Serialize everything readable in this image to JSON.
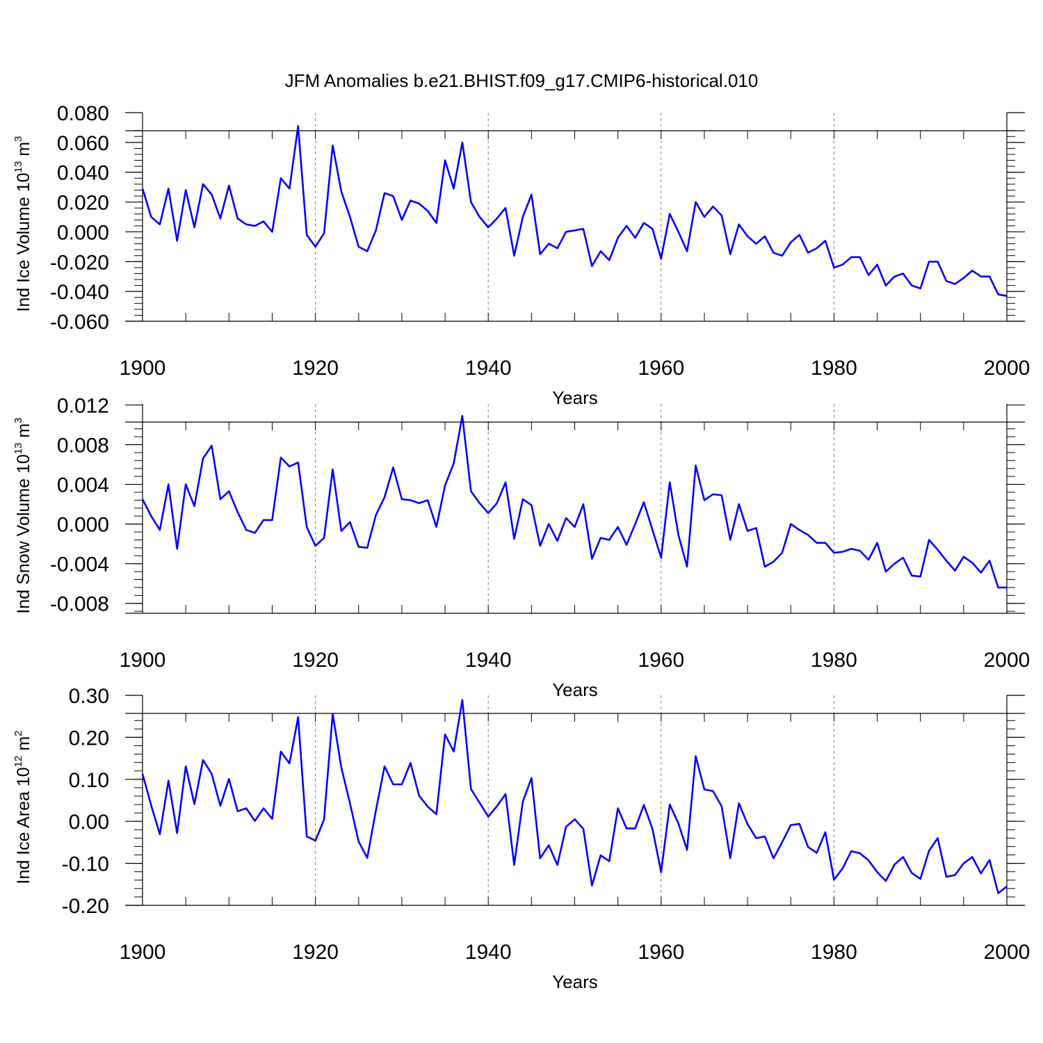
{
  "title": "JFM Anomalies b.e21.BHIST.f09_g17.CMIP6-historical.010",
  "colors": {
    "series": "#0000ff",
    "axis": "#000000",
    "grid": "#808080"
  },
  "chart_data": [
    {
      "type": "line",
      "ylabel": {
        "text": "Ind Ice Volume 10",
        "exponent": "13",
        "unit": "m",
        "unit_exponent": "3"
      },
      "xlabel": "Years",
      "xlim": [
        1900,
        2000
      ],
      "ylim": [
        -0.06,
        0.08
      ],
      "xticks": [
        1900,
        1920,
        1940,
        1960,
        1980,
        2000
      ],
      "xtick_labels": [
        "1900",
        "1920",
        "1940",
        "1960",
        "1980",
        "2000"
      ],
      "yticks": [
        -0.06,
        -0.04,
        -0.02,
        0.0,
        0.02,
        0.04,
        0.06,
        0.08
      ],
      "ytick_labels": [
        "-0.060",
        "-0.040",
        "-0.020",
        "0.000",
        "0.020",
        "0.040",
        "0.060",
        "0.080"
      ],
      "series": [
        {
          "name": "Ind Ice Volume",
          "x_start": 1900,
          "values": [
            0.029,
            0.01,
            0.005,
            0.029,
            -0.006,
            0.028,
            0.003,
            0.032,
            0.025,
            0.009,
            0.031,
            0.009,
            0.005,
            0.004,
            0.007,
            0.0,
            0.036,
            0.029,
            0.071,
            -0.002,
            -0.01,
            -0.001,
            0.058,
            0.027,
            0.01,
            -0.01,
            -0.013,
            0.001,
            0.026,
            0.024,
            0.008,
            0.021,
            0.019,
            0.014,
            0.006,
            0.048,
            0.029,
            0.06,
            0.02,
            0.01,
            0.003,
            0.009,
            0.016,
            -0.016,
            0.01,
            0.025,
            -0.015,
            -0.008,
            -0.011,
            0.0,
            0.001,
            0.002,
            -0.023,
            -0.013,
            -0.019,
            -0.004,
            0.004,
            -0.004,
            0.006,
            0.002,
            -0.018,
            0.012,
            0.0,
            -0.013,
            0.02,
            0.01,
            0.017,
            0.011,
            -0.015,
            0.005,
            -0.003,
            -0.008,
            -0.003,
            -0.014,
            -0.016,
            -0.007,
            -0.002,
            -0.014,
            -0.011,
            -0.006,
            -0.024,
            -0.022,
            -0.017,
            -0.017,
            -0.029,
            -0.022,
            -0.036,
            -0.03,
            -0.028,
            -0.036,
            -0.038,
            -0.02,
            -0.02,
            -0.033,
            -0.035,
            -0.031,
            -0.026,
            -0.03,
            -0.03,
            -0.042,
            -0.043
          ]
        }
      ]
    },
    {
      "type": "line",
      "ylabel": {
        "text": "Ind Snow Volume 10",
        "exponent": "13",
        "unit": "m",
        "unit_exponent": "3"
      },
      "xlabel": "Years",
      "xlim": [
        1900,
        2000
      ],
      "ylim": [
        -0.009,
        0.0121
      ],
      "xticks": [
        1900,
        1920,
        1940,
        1960,
        1980,
        2000
      ],
      "xtick_labels": [
        "1900",
        "1920",
        "1940",
        "1960",
        "1980",
        "2000"
      ],
      "yticks": [
        -0.008,
        -0.004,
        0.0,
        0.004,
        0.008,
        0.012
      ],
      "ytick_labels": [
        "-0.008",
        "-0.004",
        "0.000",
        "0.004",
        "0.008",
        "0.012"
      ],
      "series": [
        {
          "name": "Ind Snow Volume",
          "x_start": 1900,
          "values": [
            0.0025,
            0.0008,
            -0.0006,
            0.004,
            -0.0025,
            0.004,
            0.0018,
            0.0066,
            0.0079,
            0.0025,
            0.0033,
            0.0012,
            -0.0006,
            -0.0009,
            0.0004,
            0.0004,
            0.0067,
            0.0058,
            0.0062,
            -0.0003,
            -0.0022,
            -0.0014,
            0.0055,
            -0.0007,
            0.0002,
            -0.0023,
            -0.0024,
            0.0009,
            0.0027,
            0.0057,
            0.0025,
            0.0024,
            0.0021,
            0.0024,
            -0.0003,
            0.0039,
            0.0061,
            0.0109,
            0.0033,
            0.0021,
            0.0011,
            0.0021,
            0.0042,
            -0.0015,
            0.0025,
            0.0019,
            -0.0022,
            0.0,
            -0.0017,
            0.0006,
            -0.0003,
            0.002,
            -0.0035,
            -0.0014,
            -0.0016,
            -0.0003,
            -0.0021,
            0.0,
            0.0022,
            -0.0006,
            -0.0034,
            0.0042,
            -0.0011,
            -0.0043,
            0.0059,
            0.0024,
            0.003,
            0.0029,
            -0.0016,
            0.002,
            -0.0007,
            -0.0004,
            -0.0043,
            -0.0038,
            -0.0029,
            0.0,
            -0.0006,
            -0.0011,
            -0.0019,
            -0.0019,
            -0.0029,
            -0.0028,
            -0.0025,
            -0.0027,
            -0.0036,
            -0.0019,
            -0.0048,
            -0.004,
            -0.0034,
            -0.0052,
            -0.0053,
            -0.0016,
            -0.0026,
            -0.0037,
            -0.0047,
            -0.0033,
            -0.0039,
            -0.0049,
            -0.0037,
            -0.0064,
            -0.0064
          ]
        }
      ]
    },
    {
      "type": "line",
      "ylabel": {
        "text": "Ind Ice Area 10",
        "exponent": "12",
        "unit": "m",
        "unit_exponent": "2"
      },
      "xlabel": "Years",
      "xlim": [
        1900,
        2000
      ],
      "ylim": [
        -0.2,
        0.3
      ],
      "xticks": [
        1900,
        1920,
        1940,
        1960,
        1980,
        2000
      ],
      "xtick_labels": [
        "1900",
        "1920",
        "1940",
        "1960",
        "1980",
        "2000"
      ],
      "yticks": [
        -0.2,
        -0.1,
        0.0,
        0.1,
        0.2,
        0.3
      ],
      "ytick_labels": [
        "-0.20",
        "-0.10",
        "0.00",
        "0.10",
        "0.20",
        "0.30"
      ],
      "series": [
        {
          "name": "Ind Ice Area",
          "x_start": 1900,
          "values": [
            0.113,
            0.038,
            -0.031,
            0.097,
            -0.028,
            0.131,
            0.041,
            0.146,
            0.113,
            0.037,
            0.101,
            0.024,
            0.031,
            0.001,
            0.031,
            0.006,
            0.166,
            0.138,
            0.248,
            -0.036,
            -0.046,
            0.004,
            0.256,
            0.128,
            0.043,
            -0.048,
            -0.087,
            0.026,
            0.131,
            0.088,
            0.088,
            0.139,
            0.061,
            0.035,
            0.017,
            0.207,
            0.166,
            0.289,
            0.077,
            0.044,
            0.011,
            0.036,
            0.065,
            -0.104,
            0.047,
            0.103,
            -0.088,
            -0.057,
            -0.104,
            -0.013,
            0.005,
            -0.018,
            -0.153,
            -0.081,
            -0.095,
            0.031,
            -0.017,
            -0.017,
            0.039,
            -0.018,
            -0.121,
            0.04,
            -0.005,
            -0.068,
            0.155,
            0.076,
            0.072,
            0.036,
            -0.088,
            0.043,
            -0.007,
            -0.04,
            -0.036,
            -0.088,
            -0.05,
            -0.009,
            -0.006,
            -0.061,
            -0.075,
            -0.026,
            -0.139,
            -0.112,
            -0.071,
            -0.076,
            -0.093,
            -0.121,
            -0.142,
            -0.103,
            -0.085,
            -0.123,
            -0.137,
            -0.07,
            -0.04,
            -0.132,
            -0.128,
            -0.1,
            -0.085,
            -0.124,
            -0.092,
            -0.171,
            -0.155
          ]
        }
      ]
    }
  ]
}
